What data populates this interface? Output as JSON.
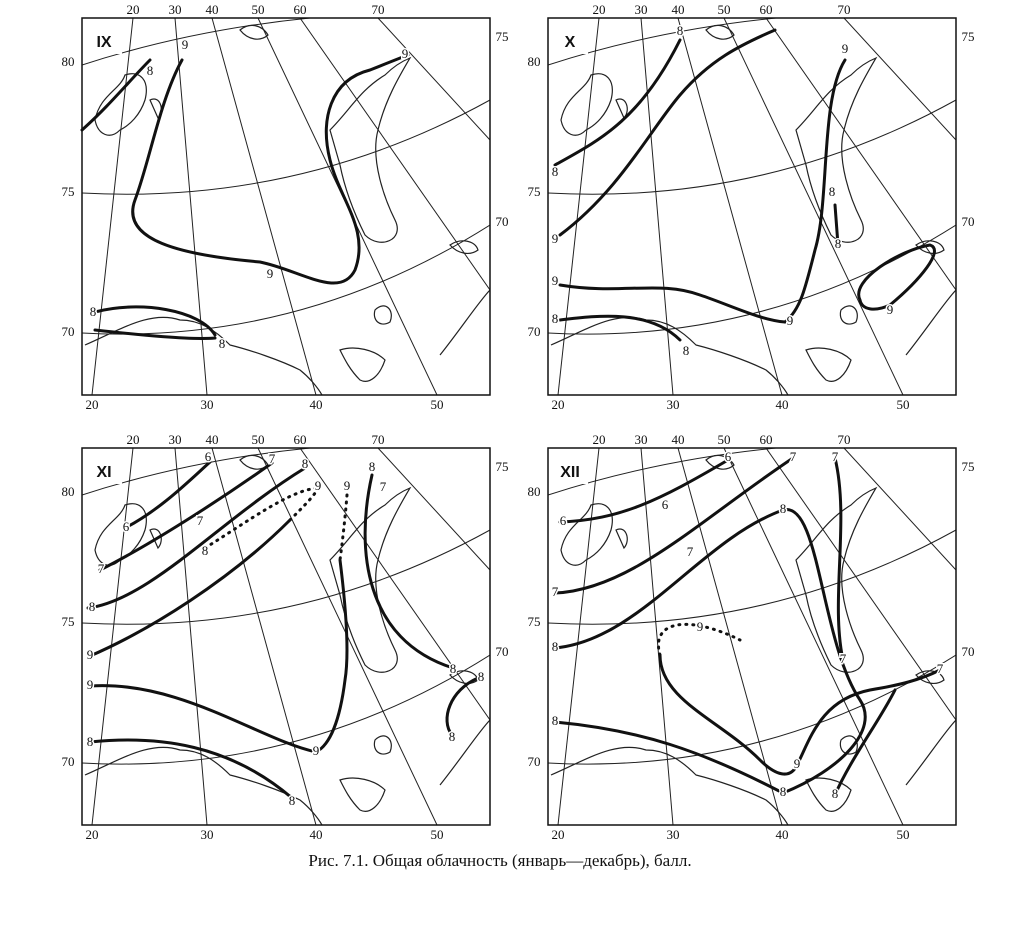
{
  "panels": [
    {
      "month": "IX",
      "top_labels": [
        "20",
        "30",
        "40",
        "50",
        "60",
        "70"
      ],
      "right_labels": [
        "75",
        "70"
      ],
      "left_labels": [
        "80",
        "75",
        "70"
      ],
      "bottom_labels": [
        "20",
        "30",
        "40",
        "50"
      ],
      "isoline_labels": [
        "9",
        "8",
        "9",
        "9",
        "8",
        "8"
      ]
    },
    {
      "month": "X",
      "top_labels": [
        "20",
        "30",
        "40",
        "50",
        "60",
        "70"
      ],
      "right_labels": [
        "75",
        "70"
      ],
      "left_labels": [
        "80",
        "75",
        "70"
      ],
      "bottom_labels": [
        "20",
        "30",
        "40",
        "50"
      ],
      "isoline_labels": [
        "8",
        "9",
        "8",
        "9",
        "8",
        "8",
        "9",
        "9",
        "9",
        "8",
        "8"
      ]
    },
    {
      "month": "XI",
      "top_labels": [
        "20",
        "30",
        "40",
        "50",
        "60",
        "70"
      ],
      "right_labels": [
        "75",
        "70"
      ],
      "left_labels": [
        "80",
        "75",
        "70"
      ],
      "bottom_labels": [
        "20",
        "30",
        "40",
        "50"
      ],
      "isoline_labels": [
        "6",
        "7",
        "8",
        "9",
        "9",
        "8",
        "7",
        "6",
        "7",
        "8",
        "7",
        "8",
        "9",
        "9",
        "8",
        "8",
        "8",
        "9",
        "8",
        "8"
      ]
    },
    {
      "month": "XII",
      "top_labels": [
        "20",
        "30",
        "40",
        "50",
        "60",
        "70"
      ],
      "right_labels": [
        "75",
        "70"
      ],
      "left_labels": [
        "80",
        "75",
        "70"
      ],
      "bottom_labels": [
        "20",
        "30",
        "40",
        "50"
      ],
      "isoline_labels": [
        "6",
        "7",
        "7",
        "6",
        "6",
        "8",
        "7",
        "7",
        "8",
        "9",
        "7",
        "7",
        "8",
        "9",
        "8",
        "8"
      ]
    }
  ],
  "caption": "Рис. 7.1. Общая облачность (январь—декабрь), балл."
}
